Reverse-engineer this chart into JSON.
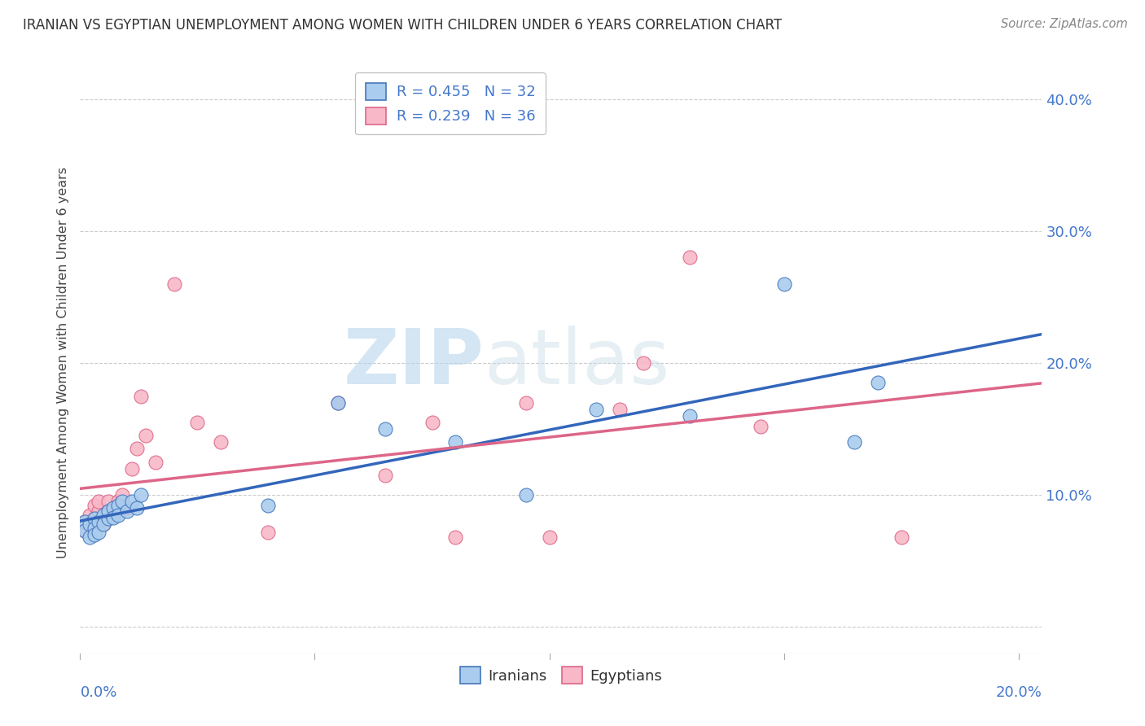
{
  "title": "IRANIAN VS EGYPTIAN UNEMPLOYMENT AMONG WOMEN WITH CHILDREN UNDER 6 YEARS CORRELATION CHART",
  "source": "Source: ZipAtlas.com",
  "ylabel": "Unemployment Among Women with Children Under 6 years",
  "xlim": [
    0.0,
    0.205
  ],
  "ylim": [
    -0.02,
    0.42
  ],
  "ytick_vals": [
    0.0,
    0.1,
    0.2,
    0.3,
    0.4
  ],
  "ytick_labels": [
    "",
    "10.0%",
    "20.0%",
    "30.0%",
    "40.0%"
  ],
  "xtick_edge_left": "0.0%",
  "xtick_edge_right": "20.0%",
  "iranian_face": "#aaccee",
  "iranian_edge": "#4477bb",
  "egyptian_face": "#f8b8c8",
  "egyptian_edge": "#dd6688",
  "iranian_line": "#3366bb",
  "egyptian_line": "#dd6688",
  "label_color": "#4477cc",
  "background": "#ffffff",
  "grid_color": "#cccccc",
  "iranians_label_r": "R = 0.455",
  "iranians_label_n": "N = 32",
  "egyptians_label_r": "R = 0.239",
  "egyptians_label_n": "N = 36",
  "iranians_x": [
    0.001,
    0.001,
    0.002,
    0.002,
    0.003,
    0.003,
    0.003,
    0.004,
    0.004,
    0.005,
    0.005,
    0.006,
    0.006,
    0.007,
    0.007,
    0.008,
    0.008,
    0.009,
    0.01,
    0.011,
    0.012,
    0.013,
    0.04,
    0.055,
    0.065,
    0.08,
    0.095,
    0.11,
    0.13,
    0.15,
    0.165,
    0.17
  ],
  "iranians_y": [
    0.08,
    0.073,
    0.078,
    0.068,
    0.082,
    0.075,
    0.07,
    0.08,
    0.072,
    0.085,
    0.078,
    0.082,
    0.088,
    0.09,
    0.083,
    0.092,
    0.085,
    0.095,
    0.088,
    0.095,
    0.09,
    0.1,
    0.092,
    0.17,
    0.15,
    0.14,
    0.1,
    0.165,
    0.16,
    0.26,
    0.14,
    0.185
  ],
  "egyptians_x": [
    0.001,
    0.001,
    0.002,
    0.002,
    0.003,
    0.003,
    0.004,
    0.004,
    0.005,
    0.005,
    0.006,
    0.006,
    0.007,
    0.008,
    0.009,
    0.01,
    0.011,
    0.012,
    0.013,
    0.014,
    0.016,
    0.02,
    0.025,
    0.03,
    0.04,
    0.055,
    0.065,
    0.075,
    0.08,
    0.095,
    0.1,
    0.115,
    0.12,
    0.13,
    0.145,
    0.175
  ],
  "egyptians_y": [
    0.08,
    0.073,
    0.085,
    0.078,
    0.092,
    0.082,
    0.088,
    0.095,
    0.083,
    0.078,
    0.095,
    0.088,
    0.085,
    0.095,
    0.1,
    0.09,
    0.12,
    0.135,
    0.175,
    0.145,
    0.125,
    0.26,
    0.155,
    0.14,
    0.072,
    0.17,
    0.115,
    0.155,
    0.068,
    0.17,
    0.068,
    0.165,
    0.2,
    0.28,
    0.152,
    0.068
  ]
}
